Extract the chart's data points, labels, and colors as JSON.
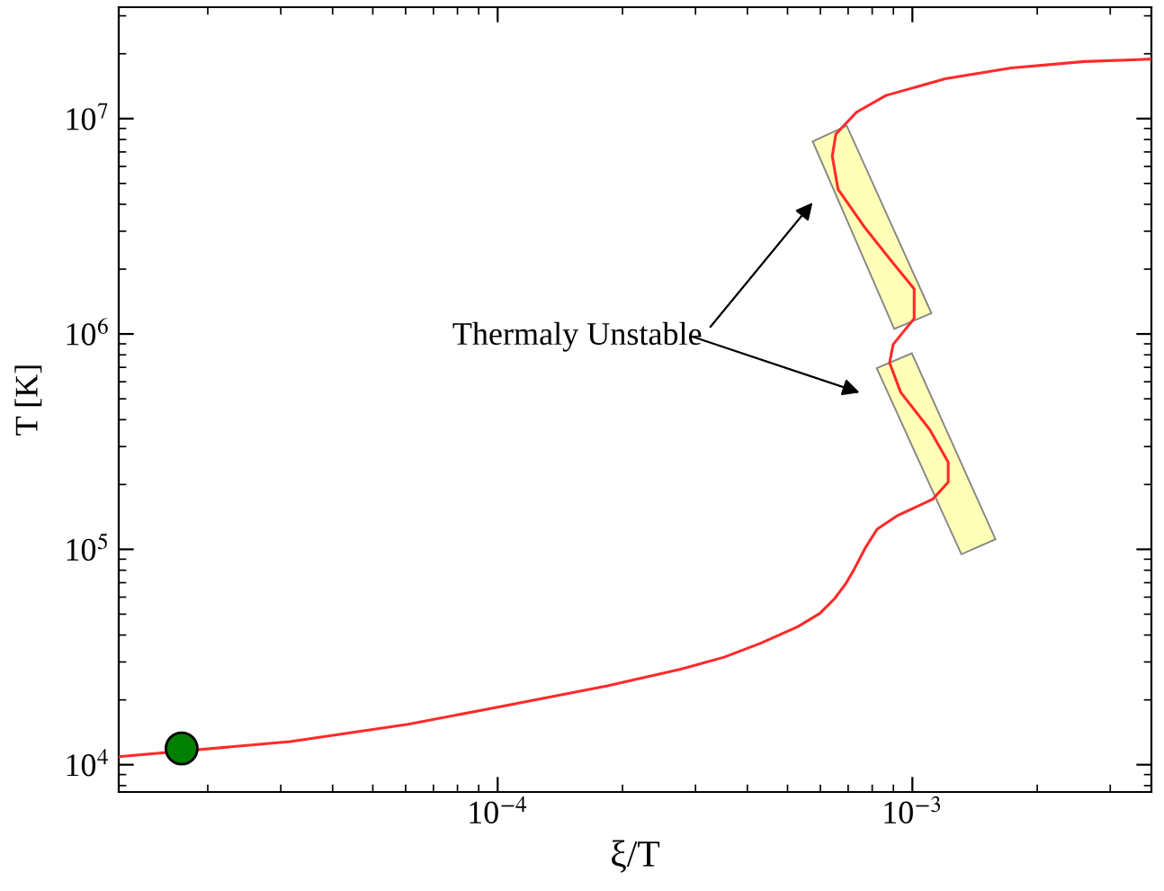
{
  "chart_data": {
    "type": "line",
    "xlabel": "ξ/T",
    "ylabel": "T [K]",
    "log": "xy",
    "grid": false,
    "legend": false,
    "xlim": [
      1.22e-05,
      0.00377
    ],
    "ylim": [
      7470,
      32900000.0
    ],
    "xticks": [
      {
        "value": 0.0001,
        "label": "10$^{−4}$"
      },
      {
        "value": 0.001,
        "label": "10$^{−3}$"
      }
    ],
    "yticks": [
      {
        "value": 10000,
        "label": "10$^{4}$"
      },
      {
        "value": 100000,
        "label": "10$^{5}$"
      },
      {
        "value": 1000000,
        "label": "10$^{6}$"
      },
      {
        "value": 10000000,
        "label": "10$^{7}$"
      }
    ],
    "annotations": [
      "Thermaly Unstable"
    ],
    "series": [
      {
        "color": "#ff2a2a",
        "marker": "none",
        "line_style": "solid",
        "x": [
          1.22e-05,
          3.16e-05,
          6.08e-05,
          0.0001,
          0.000183,
          0.000275,
          0.000352,
          0.000431,
          0.000529,
          0.000598,
          0.000649,
          0.00069,
          0.000724,
          0.000771,
          0.000822,
          0.000918,
          0.00112,
          0.00122,
          0.00122,
          0.0011,
          0.000937,
          0.000881,
          0.000899,
          0.00101,
          0.00101,
          0.000899,
          0.000764,
          0.000662,
          0.000641,
          0.000654,
          0.000733,
          0.000863,
          0.0012,
          0.00173,
          0.0026,
          0.00377
        ],
        "values": [
          10900,
          12800,
          15400,
          18500,
          23200,
          27700,
          31600,
          36700,
          43700,
          50400,
          59000,
          69000,
          80900,
          102000,
          124000,
          143000,
          171000,
          205000,
          254000,
          361000,
          536000,
          735000,
          895000,
          1180000,
          1620000,
          2130000,
          3160000,
          4690000,
          6690000,
          8470000,
          10700000,
          12800000,
          15300000,
          17200000,
          18400000,
          18900000
        ]
      },
      {
        "type": "scatter",
        "color": "#007f00",
        "marker": "circle",
        "x": [
          1.73e-05
        ],
        "values": [
          11900
        ]
      }
    ]
  }
}
